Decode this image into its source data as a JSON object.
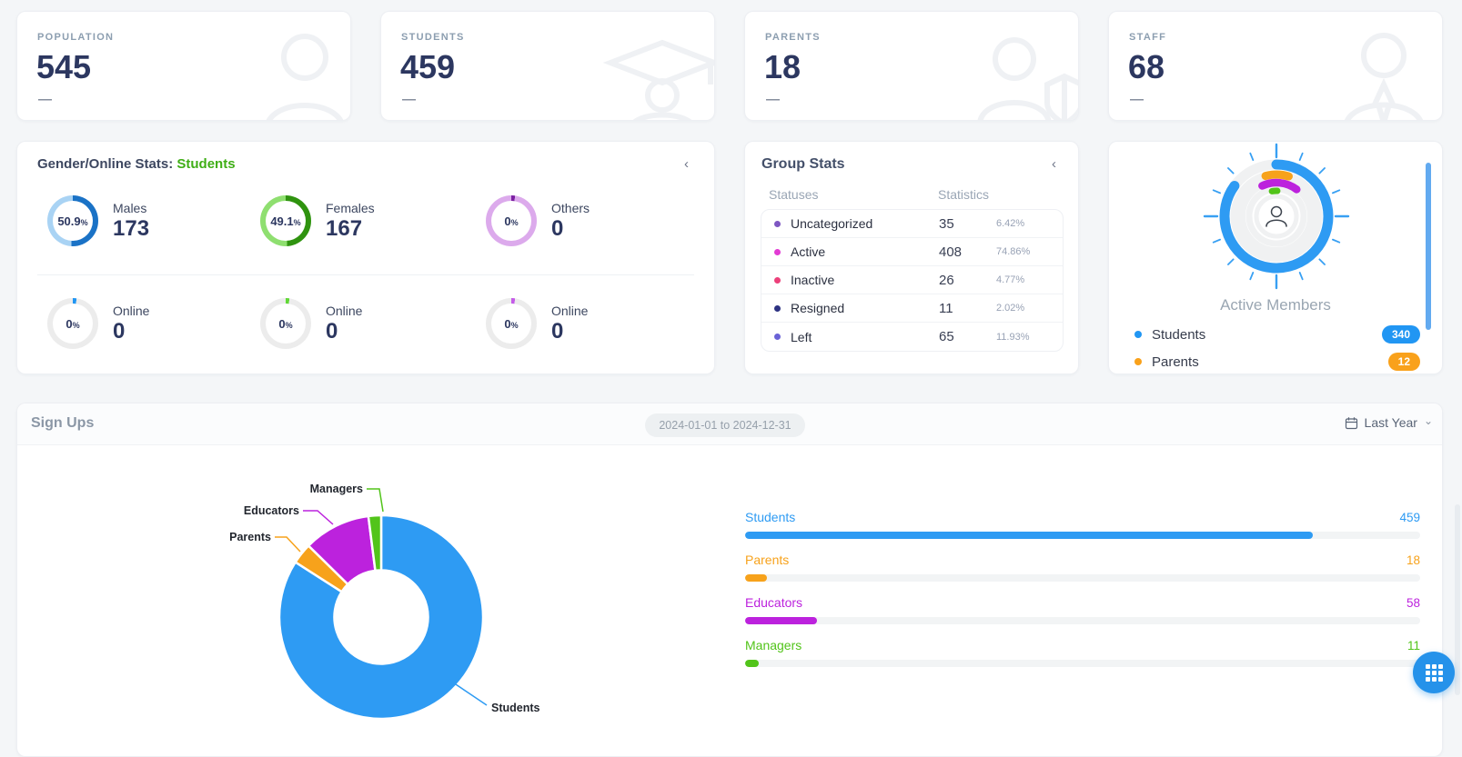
{
  "top_cards": [
    {
      "label": "POPULATION",
      "value": "545",
      "dash": "—",
      "icon": "person-icon"
    },
    {
      "label": "STUDENTS",
      "value": "459",
      "dash": "—",
      "icon": "graduate-icon"
    },
    {
      "label": "PARENTS",
      "value": "18",
      "dash": "—",
      "icon": "parent-shield-icon"
    },
    {
      "label": "STAFF",
      "value": "68",
      "dash": "—",
      "icon": "staff-icon"
    }
  ],
  "gender_stats": {
    "title": "Gender/Online Stats:",
    "title_highlight": "Students",
    "collapse_icon": "‹",
    "percent_symbol": "%",
    "groups": [
      {
        "label": "Males",
        "value": "173",
        "percent": "50.9",
        "percent_num": 50.9,
        "fill": "#1a72c6",
        "track": "#a9d3f4"
      },
      {
        "label": "Females",
        "value": "167",
        "percent": "49.1",
        "percent_num": 49.1,
        "fill": "#2f930f",
        "track": "#8fdf70"
      },
      {
        "label": "Others",
        "value": "0",
        "percent": "0",
        "percent_num": 0,
        "fill": "#7b1fa2",
        "track": "#dcaaec"
      }
    ],
    "online": [
      {
        "label": "Online",
        "value": "0",
        "percent": "0",
        "percent_num": 0,
        "fill": "#2196f3",
        "track": "#ececec"
      },
      {
        "label": "Online",
        "value": "0",
        "percent": "0",
        "percent_num": 0,
        "fill": "#61d836",
        "track": "#ececec"
      },
      {
        "label": "Online",
        "value": "0",
        "percent": "0",
        "percent_num": 0,
        "fill": "#c45be8",
        "track": "#ececec"
      }
    ]
  },
  "group_stats": {
    "title": "Group Stats",
    "collapse_icon": "‹",
    "col1": "Statuses",
    "col2": "Statistics",
    "rows": [
      {
        "label": "Uncategorized",
        "value": "35",
        "pct": "6.42%",
        "dot": "#7e57c2"
      },
      {
        "label": "Active",
        "value": "408",
        "pct": "74.86%",
        "dot": "#e23bd4"
      },
      {
        "label": "Inactive",
        "value": "26",
        "pct": "4.77%",
        "dot": "#ec407a"
      },
      {
        "label": "Resigned",
        "value": "11",
        "pct": "2.02%",
        "dot": "#2d3282"
      },
      {
        "label": "Left",
        "value": "65",
        "pct": "11.93%",
        "dot": "#6a62d6"
      }
    ]
  },
  "active_members": {
    "title": "Active Members",
    "center_icon": "person-icon",
    "legend": [
      {
        "label": "Students",
        "badge": "340",
        "color": "#2196f3"
      },
      {
        "label": "Parents",
        "badge": "12",
        "color": "#f9a11b"
      }
    ],
    "gauge": {
      "track_color": "#f0f1f2",
      "tick_color": "#2e9bf3",
      "rings": [
        {
          "color": "#2e9bf3",
          "radius": 57,
          "width": 11,
          "start": 0,
          "sweep": 306
        },
        {
          "color": "#f7a21b",
          "radius": 46,
          "width": 9,
          "start": -15,
          "sweep": 32
        },
        {
          "color": "#bc22dd",
          "radius": 37,
          "width": 8.5,
          "start": -25,
          "sweep": 62
        },
        {
          "color": "#52c41a",
          "radius": 28,
          "width": 7,
          "start": -10,
          "sweep": 12
        }
      ]
    }
  },
  "sign_ups": {
    "title": "Sign Ups",
    "date_range": "2024-01-01 to 2024-12-31",
    "range_icon": "calendar-icon",
    "range_label": "Last Year",
    "range_chevron": "⌄"
  },
  "chart_data": [
    {
      "type": "pie",
      "title": "Sign Ups by role (donut)",
      "labels": [
        "Students",
        "Parents",
        "Educators",
        "Managers"
      ],
      "values": [
        459,
        18,
        58,
        11
      ],
      "colors": [
        "#2e9bf3",
        "#f7a21b",
        "#bc22dd",
        "#52c41a"
      ],
      "start_angle": "top",
      "direction": "clockwise",
      "donut_hole_ratio": 0.46,
      "legend_position": "callout-labels"
    },
    {
      "type": "bar",
      "title": "Sign Ups by role (bars)",
      "orientation": "horizontal",
      "categories": [
        "Students",
        "Parents",
        "Educators",
        "Managers"
      ],
      "values": [
        459,
        18,
        58,
        11
      ],
      "colors": [
        "#2e9bf3",
        "#f7a21b",
        "#bc22dd",
        "#52c41a"
      ],
      "scale_max": 546,
      "grid": false
    }
  ]
}
